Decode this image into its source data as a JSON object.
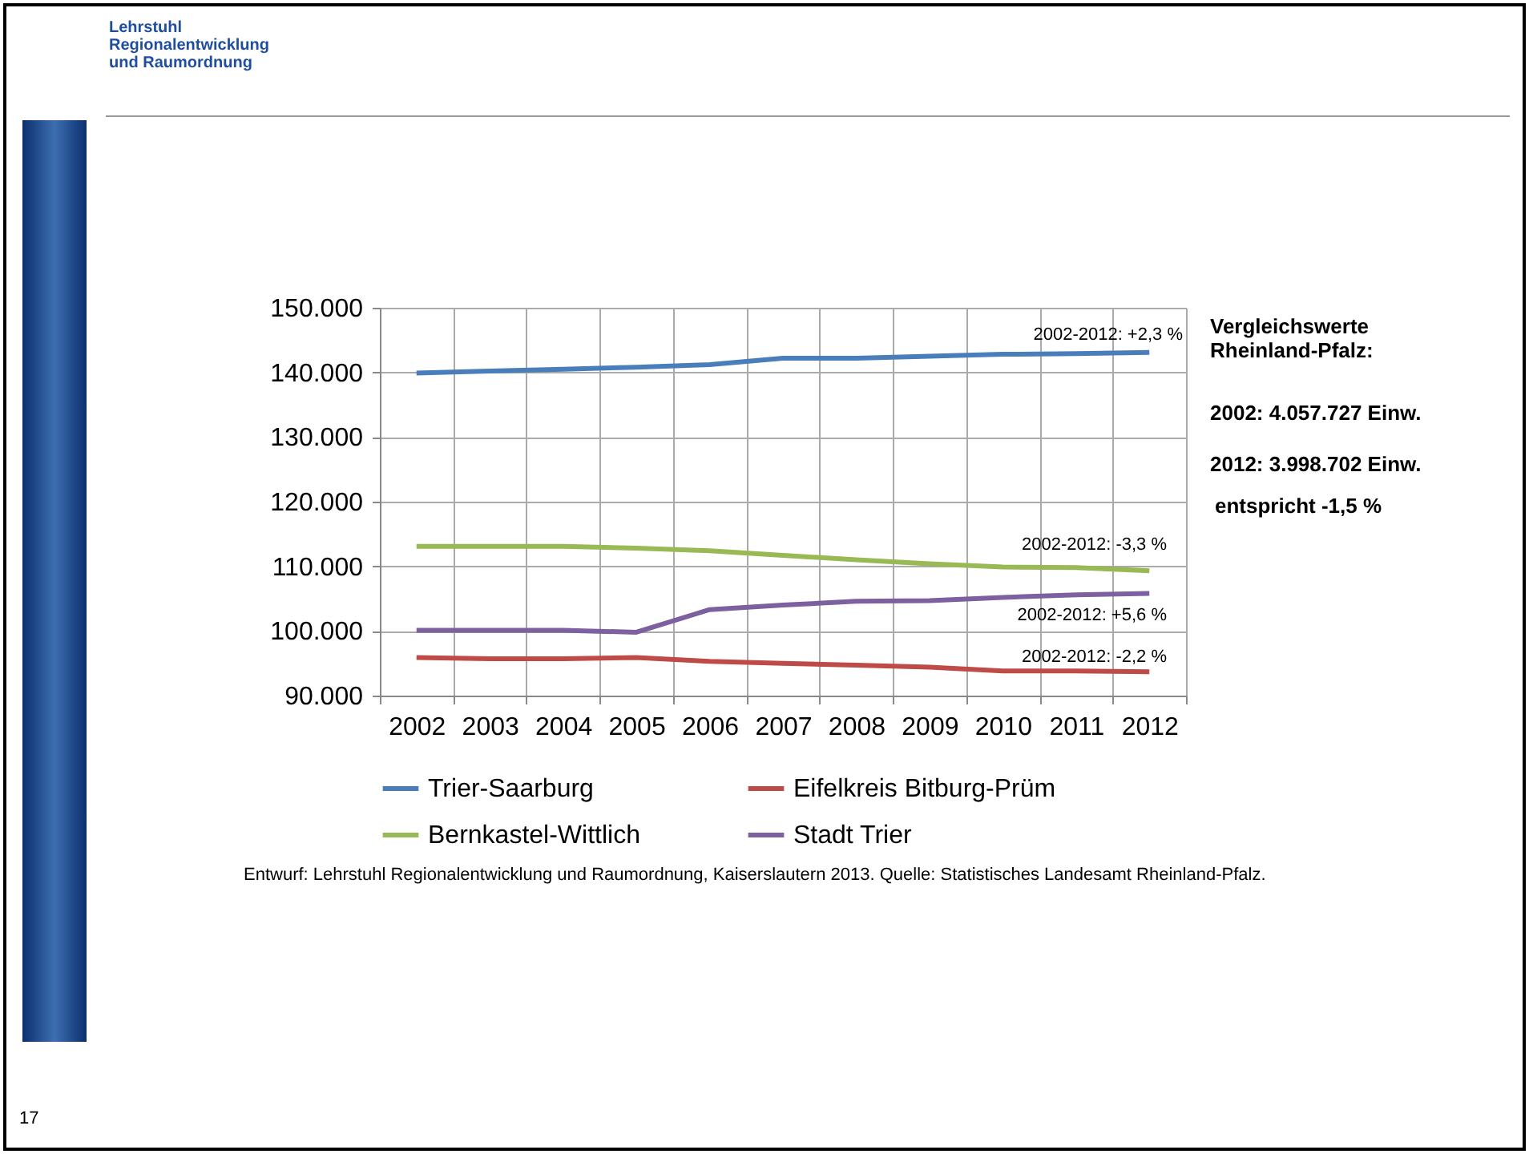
{
  "chart_data": {
    "type": "line",
    "categories": [
      "2002",
      "2003",
      "2004",
      "2005",
      "2006",
      "2007",
      "2008",
      "2009",
      "2010",
      "2011",
      "2012"
    ],
    "series": [
      {
        "name": "Trier-Saarburg",
        "color": "#4a7ebb",
        "values": [
          139900,
          140200,
          140500,
          140800,
          141200,
          142200,
          142200,
          142500,
          142800,
          142900,
          143100
        ]
      },
      {
        "name": "Eifelkreis Bitburg-Prüm",
        "color": "#be4b48",
        "values": [
          95900,
          95700,
          95700,
          95900,
          95300,
          95000,
          94700,
          94400,
          93800,
          93800,
          93700
        ]
      },
      {
        "name": "Bernkastel-Wittlich",
        "color": "#98b954",
        "values": [
          113100,
          113100,
          113100,
          112800,
          112400,
          111700,
          111000,
          110400,
          109900,
          109800,
          109300
        ]
      },
      {
        "name": "Stadt Trier",
        "color": "#7d60a0",
        "values": [
          100100,
          100100,
          100100,
          99800,
          103300,
          104000,
          104600,
          104700,
          105200,
          105600,
          105800
        ]
      }
    ],
    "ylim": [
      90000,
      150000
    ],
    "yticks": [
      {
        "value": 90000,
        "label": "90.000"
      },
      {
        "value": 100000,
        "label": "100.000"
      },
      {
        "value": 110000,
        "label": "110.000"
      },
      {
        "value": 120000,
        "label": "120.000"
      },
      {
        "value": 130000,
        "label": "130.000"
      },
      {
        "value": 140000,
        "label": "140.000"
      },
      {
        "value": 150000,
        "label": "150.000"
      }
    ],
    "grid": true,
    "legend": "bottom",
    "annotations": [
      "2002-2012: +2,3 %",
      "2002-2012: -3,3 %",
      "2002-2012: +5,6 %",
      "2002-2012: -2,2 %",
      "Vergleichswerte Rheinland-Pfalz:",
      "2002: 4.057.727 Einw.",
      "2012: 3.998.702 Einw.",
      "entspricht -1,5 %",
      "Entwurf: Lehrstuhl Regionalentwicklung und Raumordnung, Kaiserslautern 2013. Quelle: Statistisches Landesamt Rheinland-Pfalz.",
      "Lehrstuhl Regionalentwicklung und Raumordnung",
      "17"
    ]
  }
}
